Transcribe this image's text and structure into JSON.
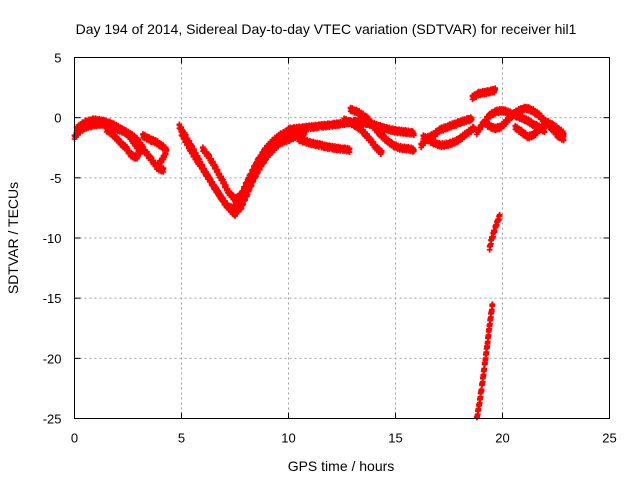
{
  "chart_data": {
    "type": "scatter",
    "title": "Day 194 of 2014, Sidereal Day-to-day VTEC variation (SDTVAR) for receiver hil1",
    "xlabel": "GPS time / hours",
    "ylabel": "SDTVAR / TECUs",
    "xlim": [
      0,
      25
    ],
    "ylim": [
      -25,
      5
    ],
    "xticks": [
      0,
      5,
      10,
      15,
      20,
      25
    ],
    "yticks": [
      5,
      0,
      -5,
      -10,
      -15,
      -20,
      -25
    ],
    "grid": true,
    "marker": "plus",
    "color": "#ff0000",
    "series": [
      {
        "name": "sat-trace-a",
        "points": [
          [
            0.0,
            -1.6
          ],
          [
            0.3,
            -1.0
          ],
          [
            0.6,
            -0.7
          ],
          [
            0.9,
            -0.6
          ],
          [
            1.2,
            -0.5
          ],
          [
            1.5,
            -0.6
          ],
          [
            1.8,
            -0.8
          ],
          [
            2.1,
            -1.0
          ],
          [
            2.4,
            -1.2
          ],
          [
            2.7,
            -1.5
          ],
          [
            3.0,
            -2.0
          ],
          [
            3.3,
            -2.8
          ],
          [
            3.6,
            -3.5
          ],
          [
            3.9,
            -4.2
          ],
          [
            4.2,
            -4.4
          ]
        ]
      },
      {
        "name": "sat-trace-b",
        "points": [
          [
            0.1,
            -0.9
          ],
          [
            0.5,
            -0.4
          ],
          [
            0.9,
            -0.2
          ],
          [
            1.3,
            -0.3
          ],
          [
            1.7,
            -0.5
          ],
          [
            2.0,
            -0.8
          ],
          [
            2.3,
            -1.1
          ],
          [
            2.6,
            -1.6
          ],
          [
            2.9,
            -2.4
          ],
          [
            3.1,
            -3.0
          ]
        ]
      },
      {
        "name": "sat-trace-c",
        "points": [
          [
            1.5,
            -1.0
          ],
          [
            1.8,
            -1.4
          ],
          [
            2.1,
            -2.0
          ],
          [
            2.4,
            -2.5
          ],
          [
            2.6,
            -3.0
          ],
          [
            2.8,
            -3.3
          ],
          [
            3.0,
            -3.2
          ]
        ]
      },
      {
        "name": "sat-trace-d",
        "points": [
          [
            3.2,
            -1.5
          ],
          [
            3.5,
            -1.8
          ],
          [
            3.8,
            -2.0
          ],
          [
            4.1,
            -2.4
          ],
          [
            4.3,
            -2.7
          ],
          [
            4.2,
            -3.2
          ],
          [
            3.9,
            -4.0
          ]
        ]
      },
      {
        "name": "sat-trace-e",
        "points": [
          [
            4.9,
            -0.7
          ],
          [
            5.2,
            -1.6
          ],
          [
            5.5,
            -2.5
          ],
          [
            5.8,
            -3.5
          ],
          [
            6.1,
            -4.5
          ],
          [
            6.4,
            -5.4
          ],
          [
            6.7,
            -6.2
          ],
          [
            7.0,
            -7.0
          ],
          [
            7.3,
            -7.7
          ],
          [
            7.5,
            -8.0
          ],
          [
            7.8,
            -7.4
          ],
          [
            8.1,
            -6.2
          ],
          [
            8.4,
            -5.0
          ],
          [
            8.7,
            -4.0
          ],
          [
            9.0,
            -3.2
          ],
          [
            9.3,
            -2.6
          ],
          [
            9.6,
            -2.1
          ],
          [
            10.0,
            -1.8
          ],
          [
            10.4,
            -1.5
          ],
          [
            10.8,
            -1.3
          ]
        ]
      },
      {
        "name": "sat-trace-f",
        "points": [
          [
            5.0,
            -1.3
          ],
          [
            5.3,
            -2.3
          ],
          [
            5.6,
            -3.2
          ],
          [
            5.9,
            -4.0
          ],
          [
            6.2,
            -4.8
          ],
          [
            6.5,
            -5.7
          ],
          [
            6.8,
            -6.5
          ],
          [
            7.1,
            -7.3
          ],
          [
            7.4,
            -7.6
          ],
          [
            7.7,
            -6.8
          ],
          [
            8.0,
            -5.6
          ],
          [
            8.3,
            -4.5
          ],
          [
            8.6,
            -3.5
          ],
          [
            8.9,
            -2.7
          ],
          [
            9.2,
            -2.1
          ],
          [
            9.5,
            -1.6
          ],
          [
            9.8,
            -1.3
          ],
          [
            10.2,
            -1.1
          ]
        ]
      },
      {
        "name": "sat-trace-g",
        "points": [
          [
            6.0,
            -2.6
          ],
          [
            6.3,
            -3.3
          ],
          [
            6.6,
            -4.2
          ],
          [
            6.9,
            -5.2
          ],
          [
            7.2,
            -6.2
          ],
          [
            7.5,
            -6.8
          ],
          [
            7.8,
            -6.4
          ],
          [
            8.1,
            -5.3
          ],
          [
            8.4,
            -4.2
          ],
          [
            8.7,
            -3.3
          ],
          [
            9.0,
            -2.5
          ],
          [
            9.3,
            -2.0
          ],
          [
            9.6,
            -1.6
          ],
          [
            10.0,
            -1.2
          ]
        ]
      },
      {
        "name": "sat-trace-h",
        "points": [
          [
            10.0,
            -1.0
          ],
          [
            10.5,
            -0.9
          ],
          [
            11.0,
            -0.8
          ],
          [
            11.5,
            -0.7
          ],
          [
            12.0,
            -0.6
          ],
          [
            12.5,
            -0.5
          ],
          [
            13.0,
            -0.3
          ],
          [
            13.5,
            -0.4
          ],
          [
            14.0,
            -0.6
          ],
          [
            14.5,
            -0.9
          ],
          [
            15.0,
            -1.1
          ],
          [
            15.5,
            -1.2
          ],
          [
            15.9,
            -1.3
          ]
        ]
      },
      {
        "name": "sat-trace-i",
        "points": [
          [
            10.5,
            -1.8
          ],
          [
            11.0,
            -2.1
          ],
          [
            11.5,
            -2.3
          ],
          [
            12.0,
            -2.5
          ],
          [
            12.5,
            -2.6
          ],
          [
            12.9,
            -2.7
          ]
        ]
      },
      {
        "name": "sat-trace-j",
        "points": [
          [
            12.9,
            0.7
          ],
          [
            13.3,
            0.4
          ],
          [
            13.7,
            -0.1
          ],
          [
            14.0,
            -0.8
          ],
          [
            14.3,
            -1.4
          ],
          [
            14.6,
            -1.9
          ],
          [
            14.9,
            -2.3
          ],
          [
            15.2,
            -2.5
          ],
          [
            15.6,
            -2.6
          ],
          [
            15.9,
            -2.7
          ]
        ]
      },
      {
        "name": "sat-trace-k",
        "points": [
          [
            12.6,
            -0.2
          ],
          [
            13.0,
            -0.5
          ],
          [
            13.4,
            -1.0
          ],
          [
            13.8,
            -1.8
          ],
          [
            14.1,
            -2.5
          ],
          [
            14.4,
            -3.0
          ]
        ]
      },
      {
        "name": "sat-trace-l",
        "points": [
          [
            16.2,
            -2.3
          ],
          [
            16.5,
            -1.7
          ],
          [
            16.8,
            -1.4
          ],
          [
            17.1,
            -1.0
          ],
          [
            17.4,
            -0.8
          ],
          [
            17.7,
            -0.6
          ],
          [
            18.0,
            -0.4
          ],
          [
            18.3,
            -0.2
          ],
          [
            18.6,
            -0.1
          ]
        ]
      },
      {
        "name": "sat-trace-m",
        "points": [
          [
            16.3,
            -1.6
          ],
          [
            16.7,
            -2.0
          ],
          [
            17.1,
            -2.3
          ],
          [
            17.5,
            -2.2
          ],
          [
            17.9,
            -1.9
          ],
          [
            18.2,
            -1.5
          ],
          [
            18.5,
            -1.1
          ],
          [
            18.7,
            -0.8
          ]
        ]
      },
      {
        "name": "sat-trace-n",
        "points": [
          [
            18.6,
            1.7
          ],
          [
            18.9,
            2.0
          ],
          [
            19.2,
            2.1
          ],
          [
            19.5,
            2.2
          ],
          [
            19.7,
            2.3
          ]
        ]
      },
      {
        "name": "sat-trace-o",
        "points": [
          [
            18.8,
            -1.2
          ],
          [
            19.1,
            -0.5
          ],
          [
            19.4,
            0.2
          ],
          [
            19.7,
            0.5
          ],
          [
            20.0,
            0.6
          ],
          [
            20.3,
            0.4
          ],
          [
            20.6,
            0.2
          ],
          [
            20.9,
            0.0
          ],
          [
            21.2,
            -0.3
          ],
          [
            21.5,
            -0.6
          ],
          [
            21.8,
            -0.9
          ],
          [
            22.0,
            -1.1
          ]
        ]
      },
      {
        "name": "sat-trace-p",
        "points": [
          [
            19.3,
            -0.6
          ],
          [
            19.6,
            -0.9
          ],
          [
            19.9,
            -0.8
          ],
          [
            20.2,
            -0.3
          ],
          [
            20.5,
            0.3
          ],
          [
            20.8,
            0.6
          ],
          [
            21.1,
            0.8
          ],
          [
            21.4,
            0.6
          ],
          [
            21.7,
            0.2
          ],
          [
            22.0,
            -0.3
          ],
          [
            22.3,
            -0.9
          ],
          [
            22.6,
            -1.5
          ],
          [
            22.9,
            -1.8
          ]
        ]
      },
      {
        "name": "sat-trace-q",
        "points": [
          [
            20.6,
            -0.8
          ],
          [
            20.9,
            -1.2
          ],
          [
            21.2,
            -1.6
          ],
          [
            21.5,
            -1.4
          ],
          [
            21.8,
            -0.8
          ],
          [
            22.1,
            -0.4
          ],
          [
            22.4,
            -0.7
          ],
          [
            22.7,
            -1.1
          ],
          [
            22.9,
            -1.4
          ]
        ]
      },
      {
        "name": "sat-trace-r",
        "points": [
          [
            19.4,
            -10.8
          ],
          [
            19.5,
            -10.1
          ],
          [
            19.6,
            -9.5
          ],
          [
            19.7,
            -9.0
          ],
          [
            19.8,
            -8.5
          ],
          [
            19.9,
            -8.0
          ]
        ]
      },
      {
        "name": "sat-trace-s",
        "points": [
          [
            18.8,
            -25.0
          ],
          [
            18.9,
            -24.0
          ],
          [
            19.0,
            -22.8
          ],
          [
            19.1,
            -21.5
          ],
          [
            19.2,
            -20.1
          ],
          [
            19.3,
            -18.7
          ],
          [
            19.4,
            -17.2
          ],
          [
            19.5,
            -15.9
          ],
          [
            19.55,
            -15.3
          ]
        ]
      }
    ]
  }
}
